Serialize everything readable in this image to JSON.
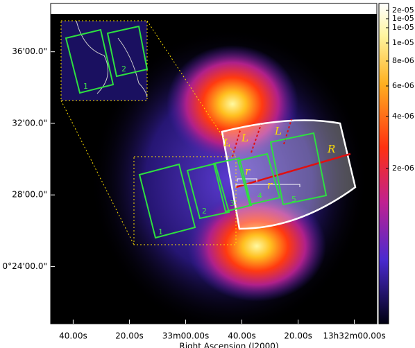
{
  "chart_data": {
    "type": "image",
    "xlabel": "Right Ascension (J2000)",
    "xlim": [
      108,
      -8
    ],
    "xticks": [
      {
        "value": 100,
        "label": "40.00s"
      },
      {
        "value": 80,
        "label": "20.00s"
      },
      {
        "value": 60,
        "label": "33m00.00s"
      },
      {
        "value": 40,
        "label": "40.00s"
      },
      {
        "value": 20,
        "label": "20.00s"
      },
      {
        "value": 0,
        "label": "13h32m00.00s"
      }
    ],
    "ylim": [
      20.8,
      38.7
    ],
    "yticks": [
      {
        "value": 36,
        "label": "36'00.0\""
      },
      {
        "value": 32,
        "label": "32'00.0\""
      },
      {
        "value": 28,
        "label": "28'00.0\""
      },
      {
        "value": 24,
        "label": "0°24'00.0\""
      }
    ],
    "colorbar": {
      "tick_labels": [
        "2e-05",
        "1e-05",
        "1e-05",
        "1e-05",
        "8e-06",
        "6e-06",
        "4e-06",
        "2e-06"
      ]
    },
    "annotations": {
      "regions": [
        "1",
        "2",
        "3",
        "4",
        "5"
      ],
      "inset_regions": [
        "1",
        "2"
      ],
      "lengths": [
        "L",
        "L",
        "L"
      ],
      "radius": "R",
      "radii": [
        "r",
        "r"
      ]
    }
  }
}
